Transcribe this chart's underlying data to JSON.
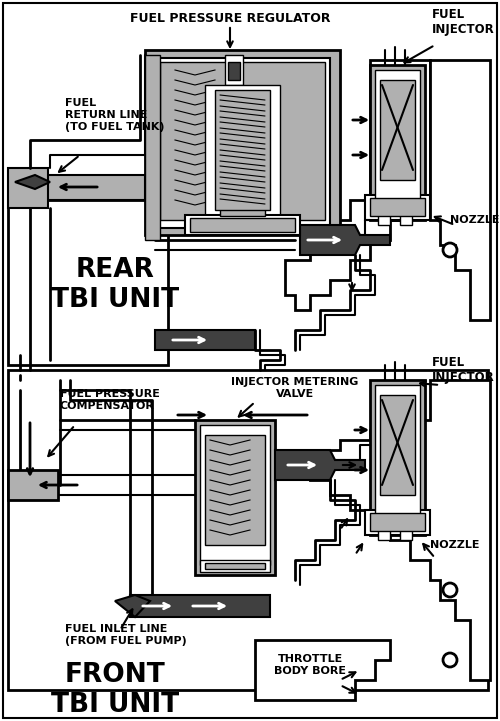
{
  "bg_color": "#ffffff",
  "line_color": "#000000",
  "shade_light": "#b0b0b0",
  "shade_dark": "#404040",
  "shade_med": "#808080",
  "labels": {
    "fuel_pressure_regulator": "FUEL PRESSURE REGULATOR",
    "fuel_injector_top": "FUEL\nINJECTOR",
    "fuel_return_line": "FUEL\nRETURN LINE\n(TO FUEL TANK)",
    "nozzle_top": "NOZZLE",
    "rear_tbi": "REAR\nTBI UNIT",
    "fuel_pressure_compensator": "FUEL PRESSURE\nCOMPENSATOR",
    "injector_metering_valve": "INJECTOR METERING\nVALVE",
    "fuel_injector_bottom": "FUEL\nINJECTOR",
    "nozzle_bottom": "NOZZLE",
    "fuel_inlet_line": "FUEL INLET LINE\n(FROM FUEL PUMP)",
    "front_tbi": "FRONT\nTBI UNIT",
    "throttle_body_bore": "THROTTLE\nBODY BORE"
  },
  "figsize": [
    5.0,
    7.21
  ],
  "dpi": 100
}
